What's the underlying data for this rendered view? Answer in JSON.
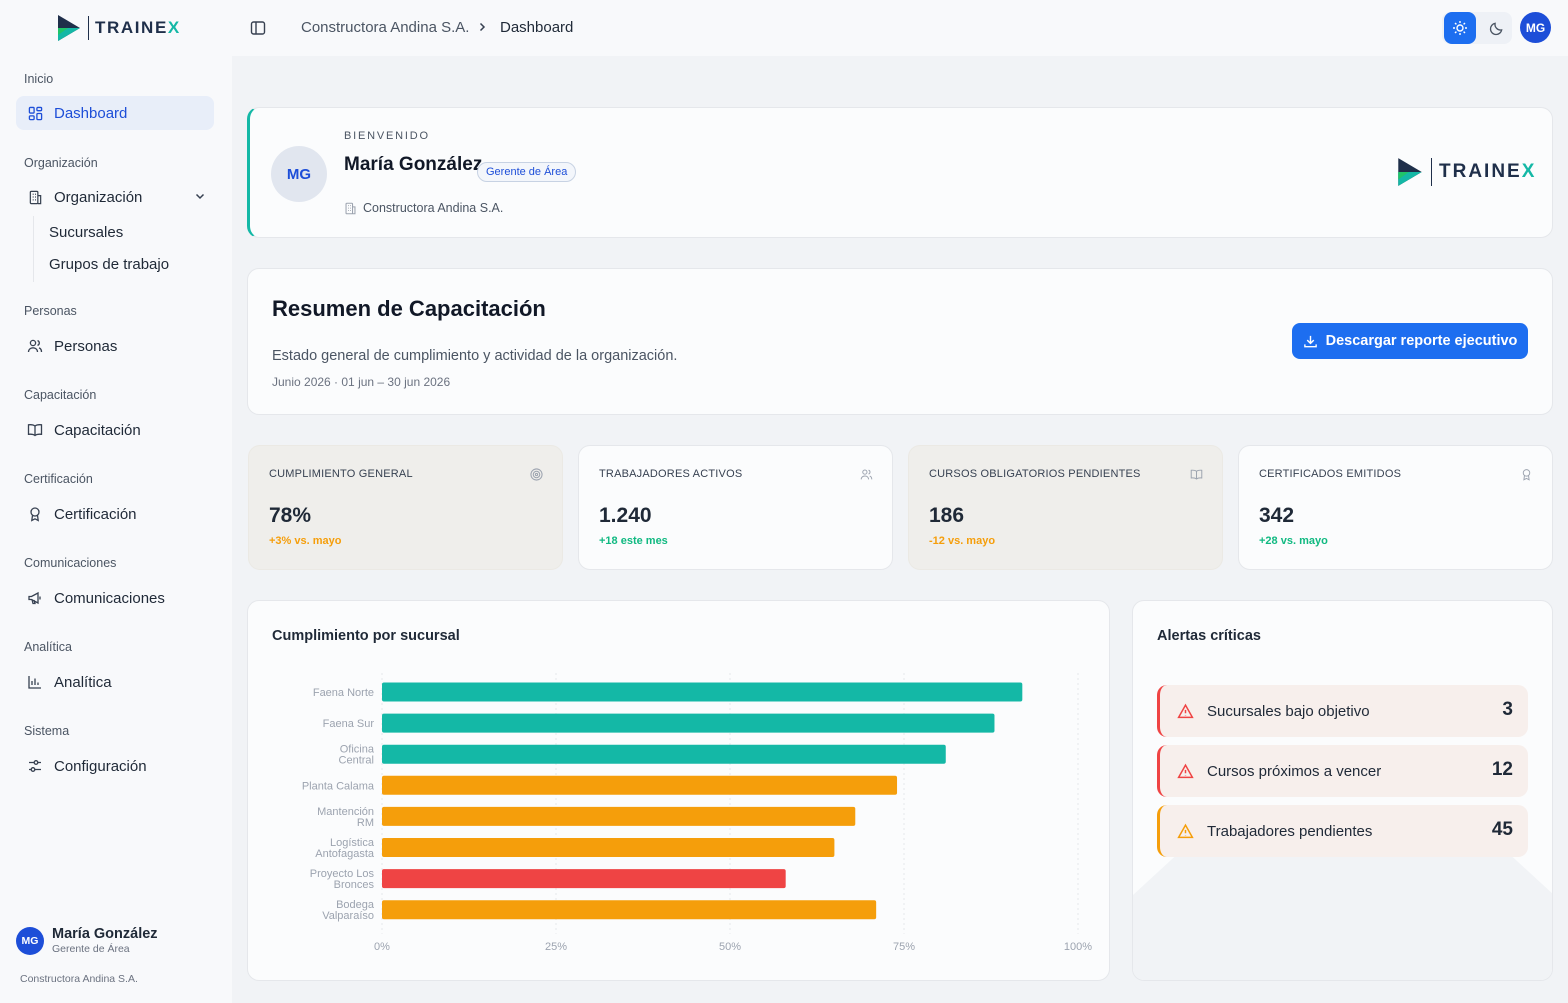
{
  "brand": {
    "name_main": "TRAINE",
    "name_accent": "X",
    "primary": "#1d6ef0",
    "accent": "#14b8a6"
  },
  "sidebar": {
    "sections": [
      {
        "label": "Inicio"
      },
      {
        "label": "Organización"
      },
      {
        "label": "Personas"
      },
      {
        "label": "Capacitación"
      },
      {
        "label": "Certificación"
      },
      {
        "label": "Comunicaciones"
      },
      {
        "label": "Analítica"
      },
      {
        "label": "Sistema"
      }
    ],
    "items": [
      {
        "label": "Dashboard",
        "icon": "dashboard-icon",
        "active": true
      },
      {
        "label": "Organización",
        "icon": "building-icon"
      },
      {
        "label": "Personas",
        "icon": "users-icon"
      },
      {
        "label": "Capacitación",
        "icon": "book-icon"
      },
      {
        "label": "Certificación",
        "icon": "award-icon"
      },
      {
        "label": "Comunicaciones",
        "icon": "megaphone-icon"
      },
      {
        "label": "Analítica",
        "icon": "bar-chart-icon"
      },
      {
        "label": "Configuración",
        "icon": "settings-icon"
      }
    ],
    "subitems": [
      {
        "label": "Sucursales"
      },
      {
        "label": "Grupos de trabajo"
      }
    ],
    "user": {
      "initials": "MG",
      "name": "María González",
      "role": "Gerente de Área",
      "org": "Constructora Andina S.A."
    }
  },
  "topbar": {
    "breadcrumb": [
      "Constructora Andina S.A.",
      "Dashboard"
    ],
    "avatar_initials": "MG"
  },
  "welcome": {
    "eyebrow": "BIENVENIDO",
    "initials": "MG",
    "name": "María González",
    "role_badge": "Gerente de Área",
    "org": "Constructora Andina S.A."
  },
  "summary": {
    "title": "Resumen de Capacitación",
    "description": "Estado general de cumplimiento y actividad de la organización.",
    "period": "Junio 2026 · 01 jun – 30 jun 2026",
    "download_label": "Descargar reporte ejecutivo"
  },
  "kpis": [
    {
      "label": "CUMPLIMIENTO GENERAL",
      "value": "78%",
      "delta": "+3% vs. mayo",
      "delta_tone": "warn",
      "icon": "target-icon"
    },
    {
      "label": "TRABAJADORES ACTIVOS",
      "value": "1.240",
      "delta": "+18 este mes",
      "delta_tone": "good",
      "icon": "users-icon"
    },
    {
      "label": "CURSOS OBLIGATORIOS PENDIENTES",
      "value": "186",
      "delta": "-12 vs. mayo",
      "delta_tone": "warn",
      "icon": "book-icon"
    },
    {
      "label": "CERTIFICADOS EMITIDOS",
      "value": "342",
      "delta": "+28 vs. mayo",
      "delta_tone": "good",
      "icon": "award-icon"
    }
  ],
  "chart": {
    "title": "Cumplimiento por sucursal"
  },
  "chart_data": {
    "type": "bar",
    "orientation": "horizontal",
    "categories": [
      [
        "Faena Norte"
      ],
      [
        "Faena Sur"
      ],
      [
        "Oficina",
        "Central"
      ],
      [
        "Planta Calama"
      ],
      [
        "Mantención",
        "RM"
      ],
      [
        "Logística",
        "Antofagasta"
      ],
      [
        "Proyecto Los",
        "Bronces"
      ],
      [
        "Bodega",
        "Valparaíso"
      ]
    ],
    "values": [
      92,
      88,
      81,
      74,
      68,
      65,
      58,
      71
    ],
    "bar_colors": [
      "#14b8a6",
      "#14b8a6",
      "#14b8a6",
      "#f59e0b",
      "#f59e0b",
      "#f59e0b",
      "#ef4444",
      "#f59e0b"
    ],
    "xlim": [
      0,
      100
    ],
    "xticks": [
      "0%",
      "25%",
      "50%",
      "75%",
      "100%"
    ],
    "grid": true
  },
  "alerts": {
    "title": "Alertas críticas",
    "items": [
      {
        "label": "Sucursales bajo objetivo",
        "count": "3",
        "tone": "danger",
        "color": "#ef4444"
      },
      {
        "label": "Cursos próximos a vencer",
        "count": "12",
        "tone": "danger",
        "color": "#ef4444"
      },
      {
        "label": "Trabajadores pendientes",
        "count": "45",
        "tone": "warn",
        "color": "#f59e0b"
      }
    ]
  }
}
